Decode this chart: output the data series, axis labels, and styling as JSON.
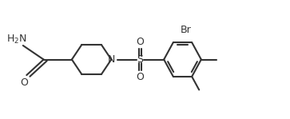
{
  "background_color": "#ffffff",
  "line_color": "#333333",
  "line_width": 1.5,
  "font_size": 9,
  "figsize": [
    3.63,
    1.49
  ],
  "dpi": 100,
  "xlim": [
    0,
    10.5
  ],
  "ylim": [
    0,
    4.1
  ]
}
